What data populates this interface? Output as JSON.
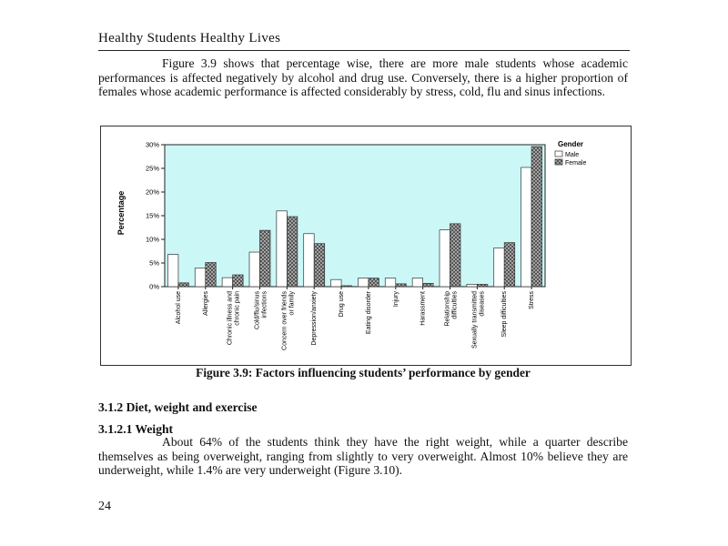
{
  "running_head": "Healthy Students Healthy Lives",
  "intro_paragraph": "Figure 3.9 shows that percentage wise, there are more male students whose academic performances is affected negatively by alcohol and drug use. Conversely, there is a higher proportion of females whose academic performance is affected considerably by stress, cold, flu and sinus infections.",
  "figure_caption": "Figure 3.9: Factors influencing students’ performance by gender",
  "section_heading": "3.1.2 Diet, weight and exercise",
  "subsection_heading": "3.1.2.1 Weight",
  "weight_paragraph": "About 64% of the students think they have the right weight, while a quarter describe themselves as being overweight, ranging from slightly to very overweight. Almost 10% believe they are underweight, while 1.4% are very underweight (Figure 3.10).",
  "page_number": "24",
  "colors": {
    "plot_background": "#ccf7f7",
    "male_fill": "#ffffff",
    "female_pattern": "#555555",
    "bar_stroke": "#333333"
  },
  "chart_data": {
    "type": "bar",
    "ylabel": "Percentage",
    "xlabel": "",
    "ylim": [
      0,
      30
    ],
    "y_ticks": [
      "0%",
      "5%",
      "10%",
      "15%",
      "20%",
      "25%",
      "30%"
    ],
    "grid": false,
    "legend_title": "Gender",
    "legend_position": "right",
    "categories": [
      "Alcohol use",
      "Allergies",
      "Chronic illness and chronic pain",
      "Cold/flu/sinus infections",
      "Concern over friends or family",
      "Depression/anxiety",
      "Drug use",
      "Eating disorder",
      "Injury",
      "Harassment",
      "Relationship difficulties",
      "Sexually transmitted diseases",
      "Sleep difficulties",
      "Stress"
    ],
    "series": [
      {
        "name": "Male",
        "values": [
          6.8,
          3.9,
          1.9,
          7.3,
          16.0,
          11.2,
          1.5,
          1.8,
          1.8,
          1.8,
          12.0,
          0.5,
          8.2,
          25.2
        ]
      },
      {
        "name": "Female",
        "values": [
          0.8,
          5.1,
          2.5,
          11.9,
          14.8,
          9.1,
          0.2,
          1.8,
          0.6,
          0.7,
          13.3,
          0.5,
          9.3,
          29.6
        ]
      }
    ]
  }
}
